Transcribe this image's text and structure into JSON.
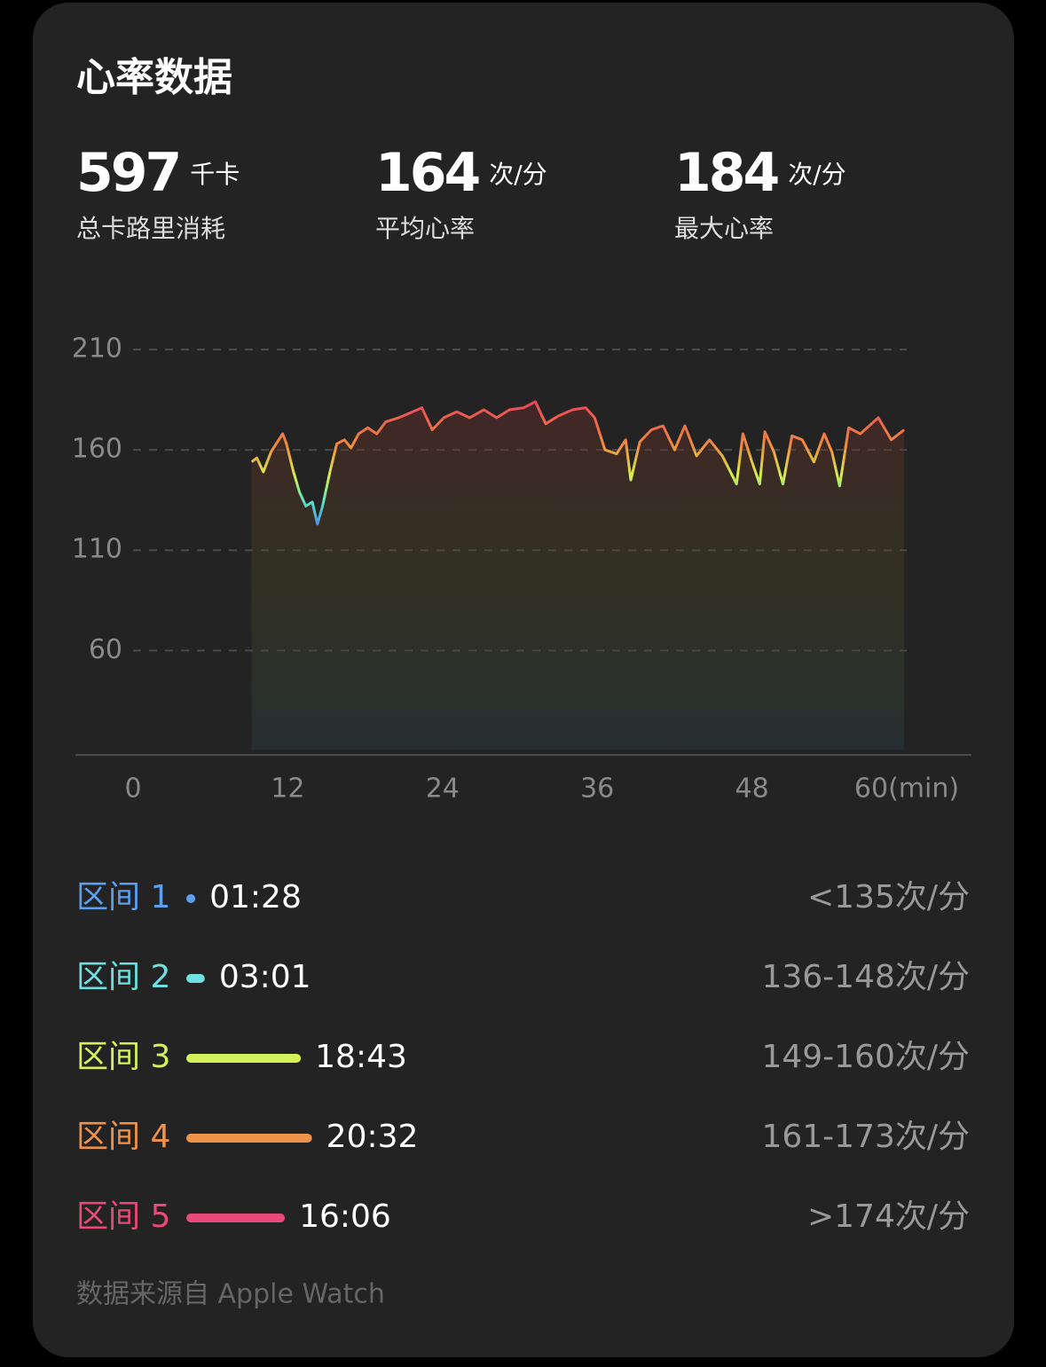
{
  "title": "心率数据",
  "stats": [
    {
      "value": "597",
      "unit": "千卡",
      "label": "总卡路里消耗"
    },
    {
      "value": "164",
      "unit": "次/分",
      "label": "平均心率"
    },
    {
      "value": "184",
      "unit": "次/分",
      "label": "最大心率"
    }
  ],
  "chart": {
    "type": "line",
    "x": [
      9.2,
      9.6,
      10.1,
      10.7,
      11.1,
      11.6,
      11.9,
      12.4,
      12.9,
      13.4,
      13.9,
      14.3,
      14.7,
      15.3,
      15.8,
      16.4,
      16.9,
      17.5,
      18.2,
      18.9,
      19.6,
      20.6,
      21.7,
      22.4,
      23.2,
      24.1,
      25.1,
      26.1,
      27.2,
      28.2,
      29.2,
      30.3,
      31.2,
      32.0,
      33.0,
      34.1,
      35.1,
      35.8,
      36.6,
      37.5,
      38.2,
      38.6,
      39.3,
      40.2,
      41.1,
      42.0,
      42.8,
      43.7,
      44.7,
      45.7,
      46.8,
      47.3,
      48.0,
      48.6,
      49.0,
      49.7,
      50.4,
      51.1,
      51.9,
      52.8,
      53.6,
      54.2,
      54.8,
      55.5,
      56.4,
      57.8,
      58.8,
      59.8
    ],
    "values": [
      154,
      156,
      149,
      159,
      163,
      168,
      163,
      150,
      139,
      132,
      134,
      123,
      132,
      150,
      163,
      165,
      161,
      168,
      171,
      168,
      174,
      176,
      179,
      181,
      170,
      176,
      179,
      176,
      180,
      176,
      180,
      181,
      184,
      173,
      177,
      180,
      181,
      176,
      160,
      158,
      165,
      145,
      164,
      170,
      172,
      160,
      172,
      157,
      165,
      157,
      143,
      168,
      154,
      143,
      169,
      159,
      143,
      167,
      165,
      154,
      168,
      159,
      142,
      171,
      168,
      176,
      165,
      170
    ],
    "xlim": [
      0,
      60
    ],
    "ylim": [
      8,
      210
    ],
    "xticks": [
      0,
      12,
      24,
      36,
      48,
      {
        "value": 60,
        "label": "60(min)"
      }
    ],
    "yticks": [
      60,
      110,
      160,
      210
    ],
    "grid": true
  },
  "zones": [
    {
      "name": "区间 1",
      "duration": "01:28",
      "range": "<135次/分",
      "color": "#5b9ff0"
    },
    {
      "name": "区间 2",
      "duration": "03:01",
      "range": "136-148次/分",
      "color": "#6de0df"
    },
    {
      "name": "区间 3",
      "duration": "18:43",
      "range": "149-160次/分",
      "color": "#d5f25a"
    },
    {
      "name": "区间 4",
      "duration": "20:32",
      "range": "161-173次/分",
      "color": "#f0934a"
    },
    {
      "name": "区间 5",
      "duration": "16:06",
      "range": ">174次/分",
      "color": "#e84a7a"
    }
  ],
  "footer": "数据来源自 Apple Watch"
}
